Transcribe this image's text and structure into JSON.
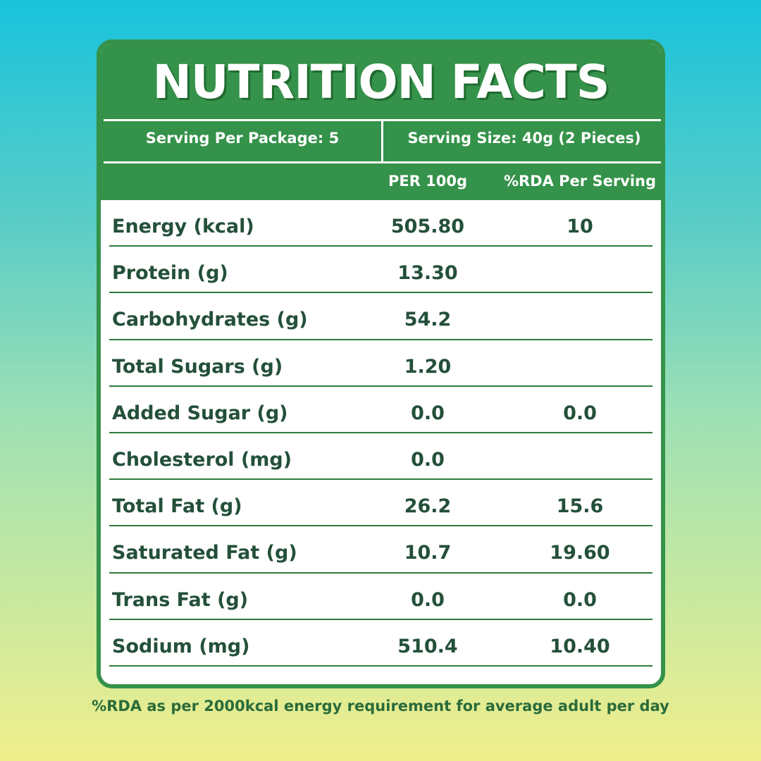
{
  "title": "NUTRITION FACTS",
  "serving": {
    "per_package": "Serving Per Package: 5",
    "size": "Serving Size: 40g (2 Pieces)"
  },
  "columns": {
    "per100": "PER 100g",
    "rda": "%RDA Per Serving"
  },
  "rows": [
    {
      "name": "Energy (kcal)",
      "per100": "505.80",
      "rda": "10"
    },
    {
      "name": "Protein (g)",
      "per100": "13.30",
      "rda": ""
    },
    {
      "name": "Carbohydrates (g)",
      "per100": "54.2",
      "rda": ""
    },
    {
      "name": "Total Sugars (g)",
      "per100": "1.20",
      "rda": ""
    },
    {
      "name": "Added Sugar (g)",
      "per100": "0.0",
      "rda": "0.0"
    },
    {
      "name": "Cholesterol (mg)",
      "per100": "0.0",
      "rda": ""
    },
    {
      "name": "Total Fat (g)",
      "per100": "26.2",
      "rda": "15.6"
    },
    {
      "name": "Saturated Fat (g)",
      "per100": "10.7",
      "rda": "19.60"
    },
    {
      "name": "Trans Fat (g)",
      "per100": "0.0",
      "rda": "0.0"
    },
    {
      "name": "Sodium (mg)",
      "per100": "510.4",
      "rda": "10.40"
    }
  ],
  "footnote": "%RDA as per 2000kcal energy requirement for average adult per day",
  "colors": {
    "brand_green": "#35924a",
    "text_green": "#24503a"
  }
}
